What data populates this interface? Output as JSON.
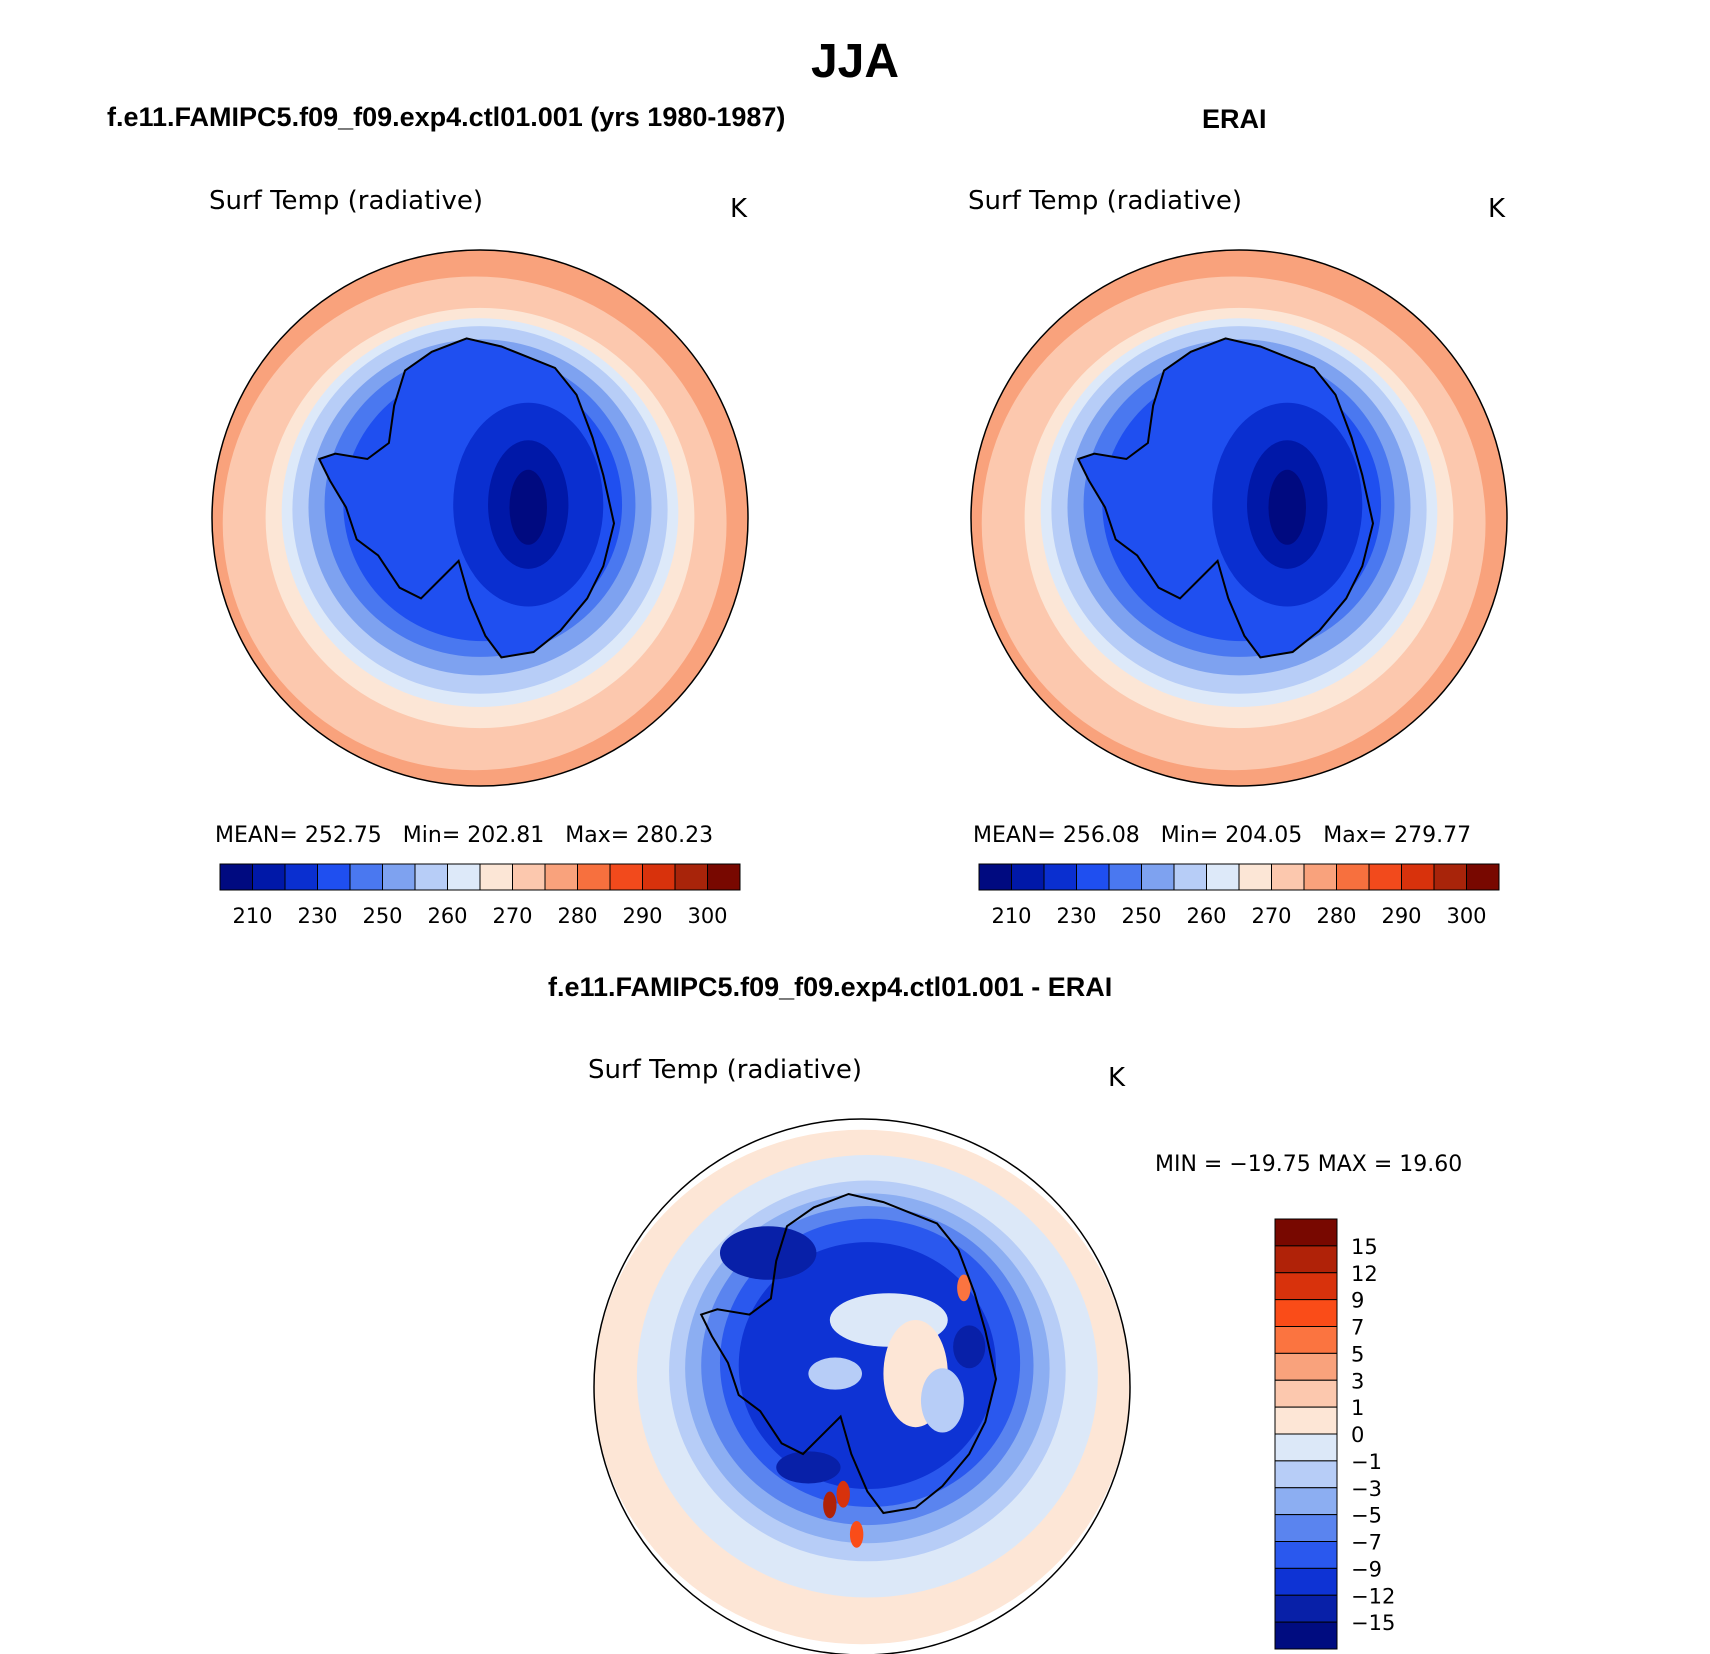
{
  "title": "JJA",
  "panels": {
    "model": {
      "title": "f.e11.FAMIPC5.f09_f09.exp4.ctl01.001 (yrs 1980-1987)",
      "field": "Surf Temp (radiative)",
      "units": "K",
      "stats": {
        "mean_label": "MEAN=",
        "mean": "252.75",
        "min_label": "Min=",
        "min": "202.81",
        "max_label": "Max=",
        "max": "280.23"
      }
    },
    "obs": {
      "title": "ERAI",
      "field": "Surf Temp (radiative)",
      "units": "K",
      "stats": {
        "mean_label": "MEAN=",
        "mean": "256.08",
        "min_label": "Min=",
        "min": "204.05",
        "max_label": "Max=",
        "max": "279.77"
      }
    },
    "diff": {
      "title": "f.e11.FAMIPC5.f09_f09.exp4.ctl01.001 - ERAI",
      "field": "Surf Temp (radiative)",
      "units": "K",
      "minmax": "MIN = −19.75 MAX =   19.60"
    }
  },
  "chart_data": [
    {
      "type": "heatmap",
      "name": "model",
      "projection": "south-polar-stereographic",
      "title": "f.e11.FAMIPC5.f09_f09.exp4.ctl01.001 (yrs 1980-1987)",
      "variable": "Surf Temp (radiative)",
      "units": "K",
      "mean": 252.75,
      "min": 202.81,
      "max": 280.23,
      "colorbar_ticks": [
        "210",
        "230",
        "250",
        "260",
        "270",
        "280",
        "290",
        "300"
      ],
      "colorbar_colors": [
        "#000a80",
        "#0018a8",
        "#0a2fd0",
        "#1f4ff0",
        "#4a78f0",
        "#7ea2f0",
        "#b7cdf7",
        "#dde9f9",
        "#fce6d6",
        "#fcc8ae",
        "#f9a27c",
        "#f7703e",
        "#f24a1c",
        "#d8320c",
        "#a8240a",
        "#780800"
      ]
    },
    {
      "type": "heatmap",
      "name": "obs",
      "projection": "south-polar-stereographic",
      "title": "ERAI",
      "variable": "Surf Temp (radiative)",
      "units": "K",
      "mean": 256.08,
      "min": 204.05,
      "max": 279.77,
      "colorbar_ticks": [
        "210",
        "230",
        "250",
        "260",
        "270",
        "280",
        "290",
        "300"
      ],
      "colorbar_colors": [
        "#000a80",
        "#0018a8",
        "#0a2fd0",
        "#1f4ff0",
        "#4a78f0",
        "#7ea2f0",
        "#b7cdf7",
        "#dde9f9",
        "#fce6d6",
        "#fcc8ae",
        "#f9a27c",
        "#f7703e",
        "#f24a1c",
        "#d8320c",
        "#a8240a",
        "#780800"
      ]
    },
    {
      "type": "heatmap",
      "name": "difference",
      "projection": "south-polar-stereographic",
      "title": "f.e11.FAMIPC5.f09_f09.exp4.ctl01.001 - ERAI",
      "variable": "Surf Temp (radiative)",
      "units": "K",
      "min": -19.75,
      "max": 19.6,
      "colorbar_ticks": [
        "15",
        "12",
        "9",
        "7",
        "5",
        "3",
        "1",
        "0",
        "−1",
        "−3",
        "−5",
        "−7",
        "−9",
        "−12",
        "−15"
      ],
      "colorbar_colors": [
        "#780800",
        "#b02208",
        "#d8320c",
        "#fa4c18",
        "#fb7440",
        "#f9a27c",
        "#fcc8ae",
        "#fde6d6",
        "#dce8f8",
        "#b7cdf7",
        "#8caef2",
        "#5a84ef",
        "#2a58ee",
        "#0e33d4",
        "#0820a8",
        "#000c80"
      ]
    }
  ]
}
